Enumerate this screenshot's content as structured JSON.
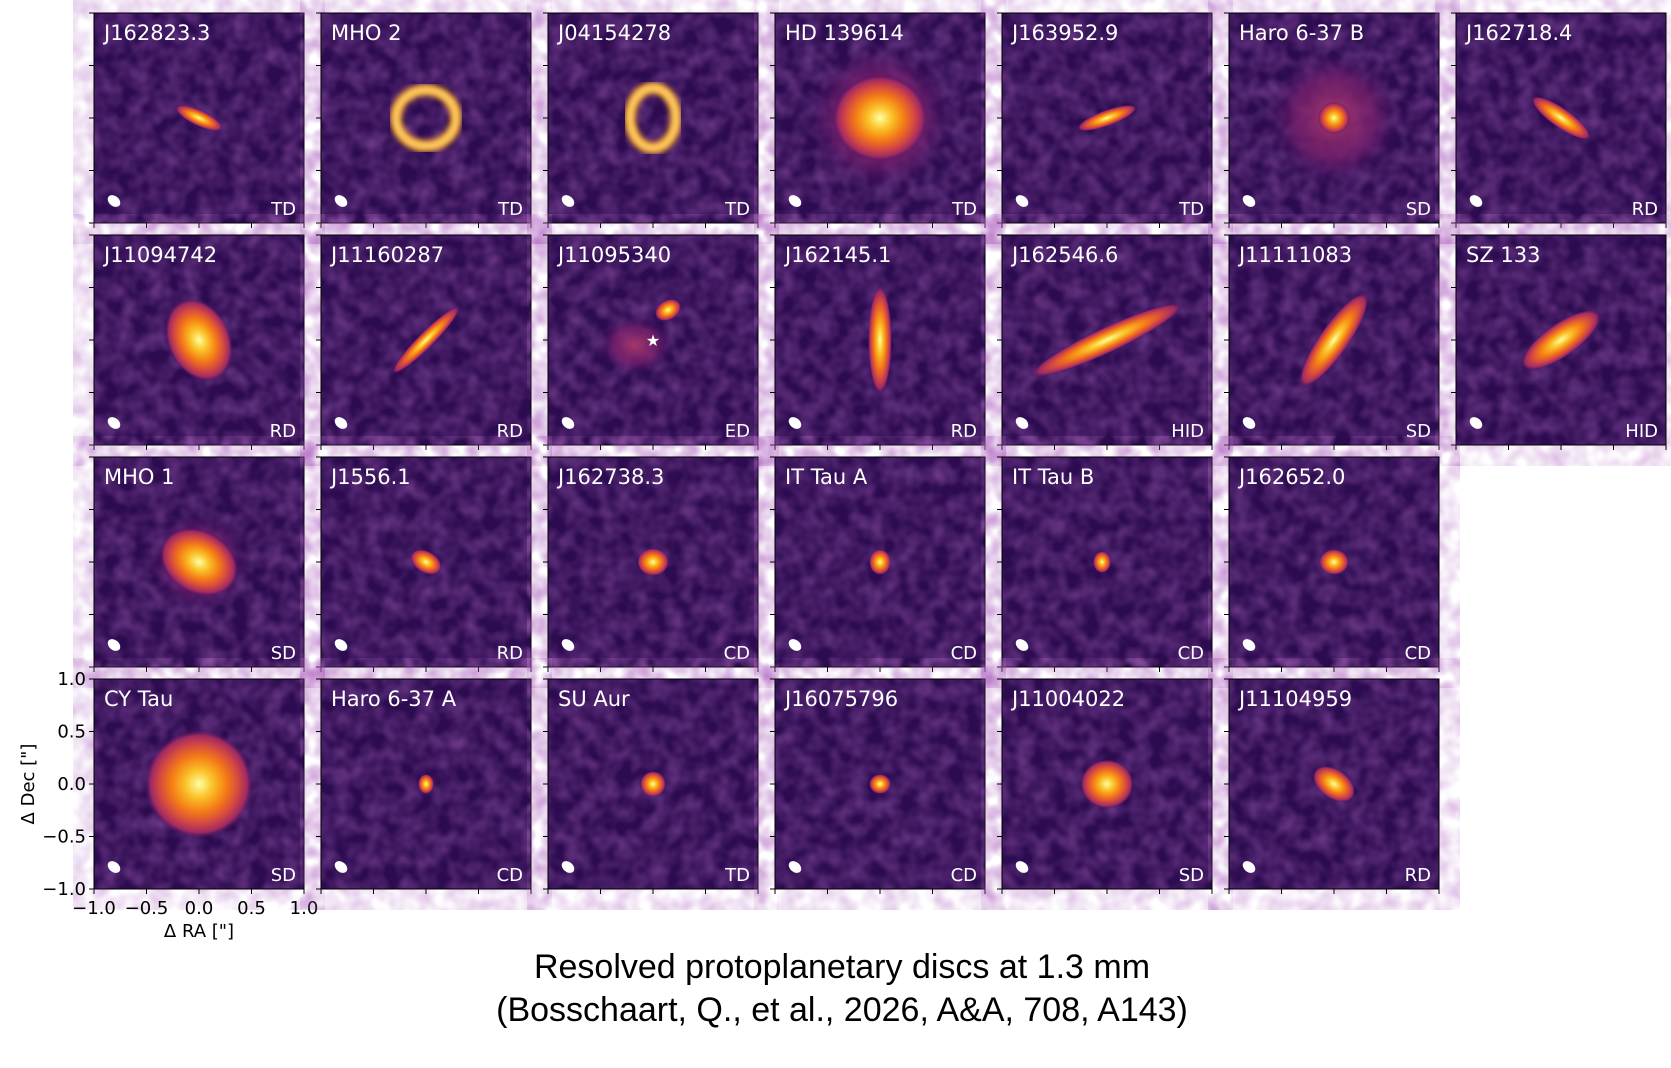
{
  "panels": [
    {
      "name": "J162823.3",
      "class": "TD"
    },
    {
      "name": "MHO 2",
      "class": "TD"
    },
    {
      "name": "J04154278",
      "class": "TD"
    },
    {
      "name": "HD 139614",
      "class": "TD"
    },
    {
      "name": "J163952.9",
      "class": "TD"
    },
    {
      "name": "Haro 6-37 B",
      "class": "SD"
    },
    {
      "name": "J162718.4",
      "class": "RD"
    },
    {
      "name": "J11094742",
      "class": "RD"
    },
    {
      "name": "J11160287",
      "class": "RD"
    },
    {
      "name": "J11095340",
      "class": "ED"
    },
    {
      "name": "J162145.1",
      "class": "RD"
    },
    {
      "name": "J162546.6",
      "class": "HID"
    },
    {
      "name": "J11111083",
      "class": "SD"
    },
    {
      "name": "SZ 133",
      "class": "HID"
    },
    {
      "name": "MHO 1",
      "class": "SD"
    },
    {
      "name": "J1556.1",
      "class": "RD"
    },
    {
      "name": "J162738.3",
      "class": "CD"
    },
    {
      "name": "IT Tau A",
      "class": "CD"
    },
    {
      "name": "IT Tau B",
      "class": "CD"
    },
    {
      "name": "J162652.0",
      "class": "CD"
    },
    {
      "name": "CY Tau",
      "class": "SD"
    },
    {
      "name": "Haro 6-37 A",
      "class": "CD"
    },
    {
      "name": "SU Aur",
      "class": "TD"
    },
    {
      "name": "J16075796",
      "class": "CD"
    },
    {
      "name": "J11004022",
      "class": "SD"
    },
    {
      "name": "J11104959",
      "class": "RD"
    }
  ],
  "axes": {
    "xlabel": "Δ RA [\"]",
    "ylabel": "Δ Dec [\"]",
    "xticks": [
      {
        "value": -1,
        "label": "−1.0"
      },
      {
        "value": -0.5,
        "label": "−0.5"
      },
      {
        "value": 0,
        "label": "0.0"
      },
      {
        "value": 0.5,
        "label": "0.5"
      },
      {
        "value": 1,
        "label": "1.0"
      }
    ],
    "yticks": [
      {
        "value": -1,
        "label": "−1.0"
      },
      {
        "value": -0.5,
        "label": "−0.5"
      },
      {
        "value": 0,
        "label": "0.0"
      },
      {
        "value": 0.5,
        "label": "0.5"
      },
      {
        "value": 1,
        "label": "1.0"
      }
    ]
  },
  "caption": {
    "line1": "Resolved protoplanetary discs at 1.3 mm",
    "line2": "(Bosschaart, Q., et al., 2026,  A&A, 708, A143)"
  }
}
